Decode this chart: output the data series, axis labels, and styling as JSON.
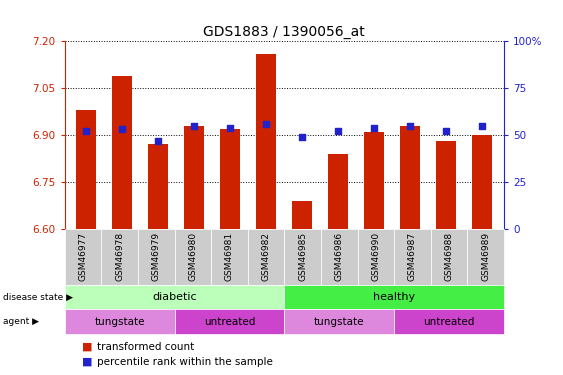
{
  "title": "GDS1883 / 1390056_at",
  "samples": [
    "GSM46977",
    "GSM46978",
    "GSM46979",
    "GSM46980",
    "GSM46981",
    "GSM46982",
    "GSM46985",
    "GSM46986",
    "GSM46990",
    "GSM46987",
    "GSM46988",
    "GSM46989"
  ],
  "transformed_count": [
    6.98,
    7.09,
    6.87,
    6.93,
    6.92,
    7.16,
    6.69,
    6.84,
    6.91,
    6.93,
    6.88,
    6.9
  ],
  "percentile_rank": [
    52,
    53,
    47,
    55,
    54,
    56,
    49,
    52,
    54,
    55,
    52,
    55
  ],
  "ylim_left": [
    6.6,
    7.2
  ],
  "ylim_right": [
    0,
    100
  ],
  "yticks_left": [
    6.6,
    6.75,
    6.9,
    7.05,
    7.2
  ],
  "yticks_right": [
    0,
    25,
    50,
    75,
    100
  ],
  "ytick_labels_right": [
    "0",
    "25",
    "50",
    "75",
    "100%"
  ],
  "bar_color": "#cc2200",
  "dot_color": "#2222cc",
  "bar_bottom": 6.6,
  "disease_state_color_diabetic": "#bbffbb",
  "disease_state_color_healthy": "#44ee44",
  "agent_color_tungstate": "#dd88dd",
  "agent_color_untreated": "#cc44cc",
  "tick_color_left": "#cc2200",
  "tick_color_right": "#2222cc",
  "xlabel_area_color": "#cccccc"
}
